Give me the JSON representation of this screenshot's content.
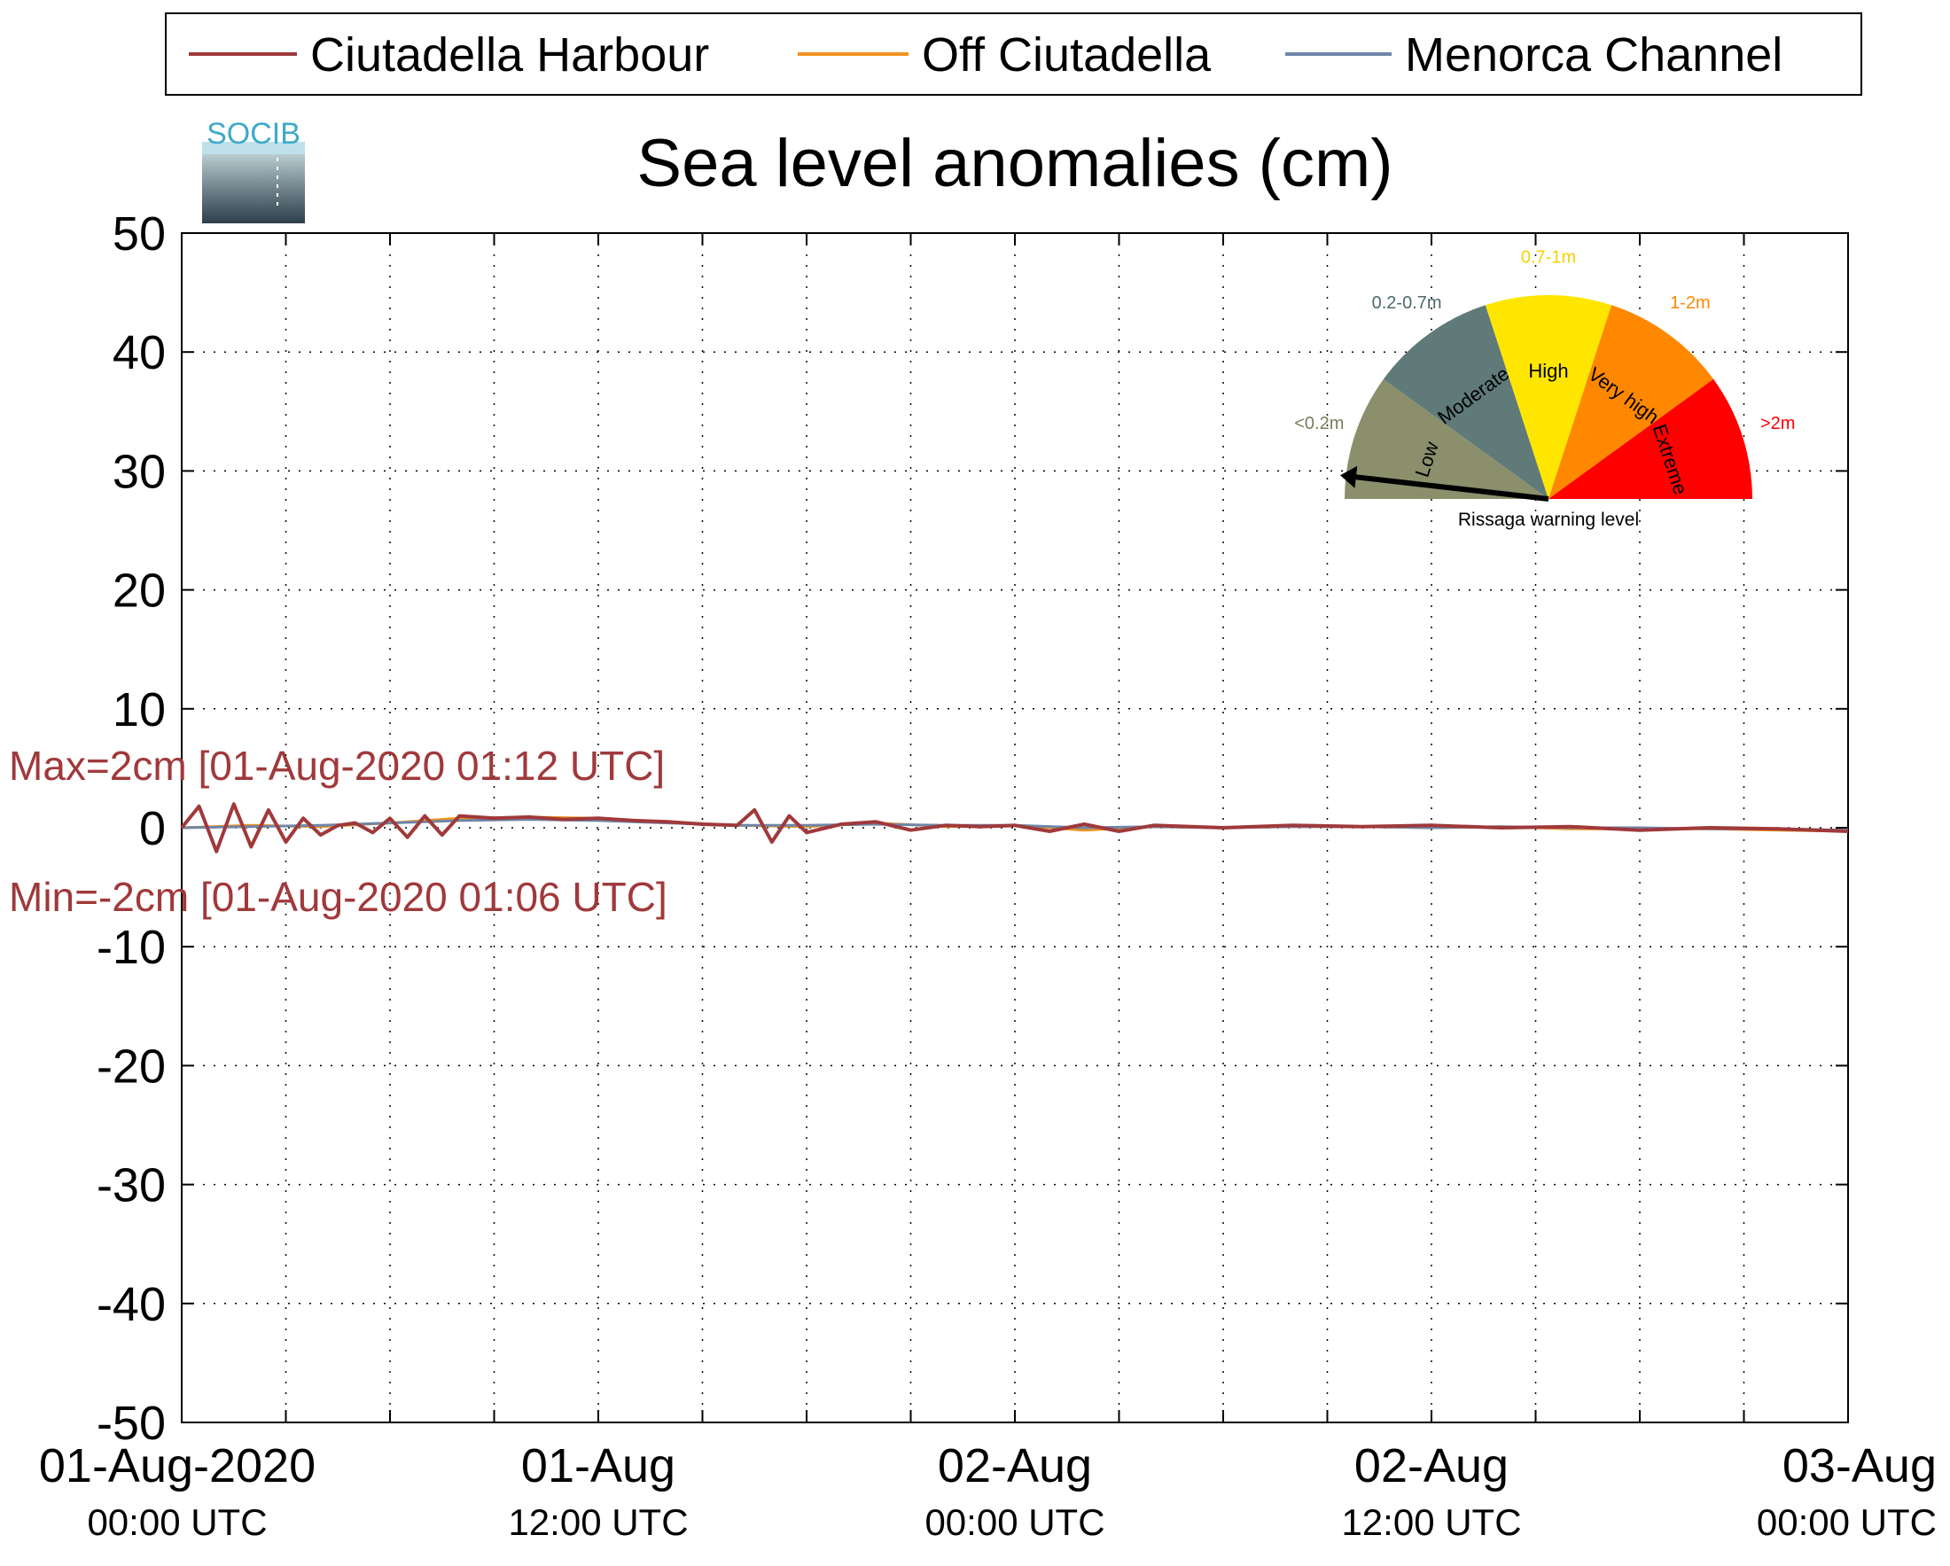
{
  "chart_data": {
    "type": "line",
    "title": "Sea level anomalies (cm)",
    "logo_text": "SOCIB",
    "xlabel": "",
    "ylabel": "",
    "ylim": [
      -50,
      50
    ],
    "yticks": [
      50,
      40,
      30,
      20,
      10,
      0,
      -10,
      -20,
      -30,
      -40,
      -50
    ],
    "xlim_hours": [
      0,
      48
    ],
    "xticks": [
      {
        "hour": 0,
        "line1": "01-Aug-2020",
        "line2": "00:00 UTC"
      },
      {
        "hour": 12,
        "line1": "01-Aug",
        "line2": "12:00 UTC"
      },
      {
        "hour": 24,
        "line1": "02-Aug",
        "line2": "00:00 UTC"
      },
      {
        "hour": 36,
        "line1": "02-Aug",
        "line2": "12:00 UTC"
      },
      {
        "hour": 48,
        "line1": "03-Aug",
        "line2": "00:00 UTC"
      }
    ],
    "minor_xtick_hours": [
      3,
      6,
      9,
      15,
      18,
      21,
      27,
      30,
      33,
      39,
      42,
      45
    ],
    "grid": true,
    "legend_position": "top",
    "series": [
      {
        "name": "Ciutadella Harbour",
        "color": "#a0393b",
        "x": [
          0,
          0.5,
          1,
          1.5,
          2,
          2.5,
          3,
          3.5,
          4,
          4.5,
          5,
          5.5,
          6,
          6.5,
          7,
          7.5,
          8,
          9,
          10,
          11,
          12,
          13,
          14,
          15,
          16,
          16.5,
          17,
          17.5,
          18,
          19,
          20,
          21,
          22,
          23,
          24,
          25,
          26,
          27,
          28,
          30,
          32,
          34,
          36,
          38,
          40,
          42,
          44,
          46,
          48
        ],
        "y": [
          0,
          1.8,
          -2,
          2,
          -1.6,
          1.5,
          -1.2,
          0.8,
          -0.6,
          0.2,
          0.4,
          -0.4,
          0.8,
          -0.8,
          1,
          -0.6,
          1,
          0.8,
          0.9,
          0.7,
          0.8,
          0.6,
          0.5,
          0.3,
          0.2,
          1.5,
          -1.2,
          1,
          -0.4,
          0.3,
          0.5,
          -0.2,
          0.2,
          0.1,
          0.2,
          -0.3,
          0.3,
          -0.3,
          0.2,
          0,
          0.2,
          0.1,
          0.2,
          0,
          0.1,
          -0.2,
          0,
          -0.1,
          -0.3
        ]
      },
      {
        "name": "Off Ciutadella",
        "color": "#f0921e",
        "x": [
          0,
          2,
          4,
          6,
          8,
          10,
          12,
          14,
          16,
          18,
          20,
          22,
          24,
          26,
          28,
          30,
          32,
          34,
          36,
          38,
          40,
          42,
          44,
          46,
          48
        ],
        "y": [
          0,
          0.2,
          0.1,
          0.4,
          0.8,
          0.9,
          0.8,
          0.5,
          0.2,
          0.1,
          0.4,
          0.1,
          0.2,
          -0.2,
          0.1,
          0,
          0.1,
          0.1,
          0,
          0.1,
          -0.1,
          -0.1,
          -0.1,
          -0.2,
          -0.3
        ]
      },
      {
        "name": "Menorca Channel",
        "color": "#6f86a8",
        "x": [
          0,
          2,
          4,
          6,
          8,
          10,
          12,
          14,
          16,
          18,
          20,
          22,
          24,
          26,
          28,
          30,
          32,
          34,
          36,
          38,
          40,
          42,
          44,
          46,
          48
        ],
        "y": [
          0,
          0.1,
          0.2,
          0.4,
          0.6,
          0.7,
          0.6,
          0.4,
          0.2,
          0.2,
          0.3,
          0.2,
          0.2,
          0,
          0.1,
          0,
          0.1,
          0.1,
          0,
          0.1,
          0,
          0,
          -0.1,
          -0.1,
          -0.2
        ]
      }
    ],
    "annotations": {
      "max": "Max=2cm [01-Aug-2020 01:12 UTC]",
      "min": "Min=-2cm [01-Aug-2020 01:06 UTC]",
      "color": "#a0393b"
    },
    "gauge": {
      "caption": "Rissaga warning level",
      "needle_level": "Low",
      "segments": [
        {
          "label": "Low",
          "range": "<0.2m",
          "color": "#8b8f6c",
          "range_color": "#7a7d5d"
        },
        {
          "label": "Moderate",
          "range": "0.2-0.7m",
          "color": "#5f7a78",
          "range_color": "#4f6a6a"
        },
        {
          "label": "High",
          "range": "0.7-1m",
          "color": "#ffe600",
          "range_color": "#f5d300"
        },
        {
          "label": "Very high",
          "range": "1-2m",
          "color": "#ff8800",
          "range_color": "#ff8800"
        },
        {
          "label": "Extreme",
          "range": ">2m",
          "color": "#ff0000",
          "range_color": "#ff0000"
        }
      ]
    }
  }
}
